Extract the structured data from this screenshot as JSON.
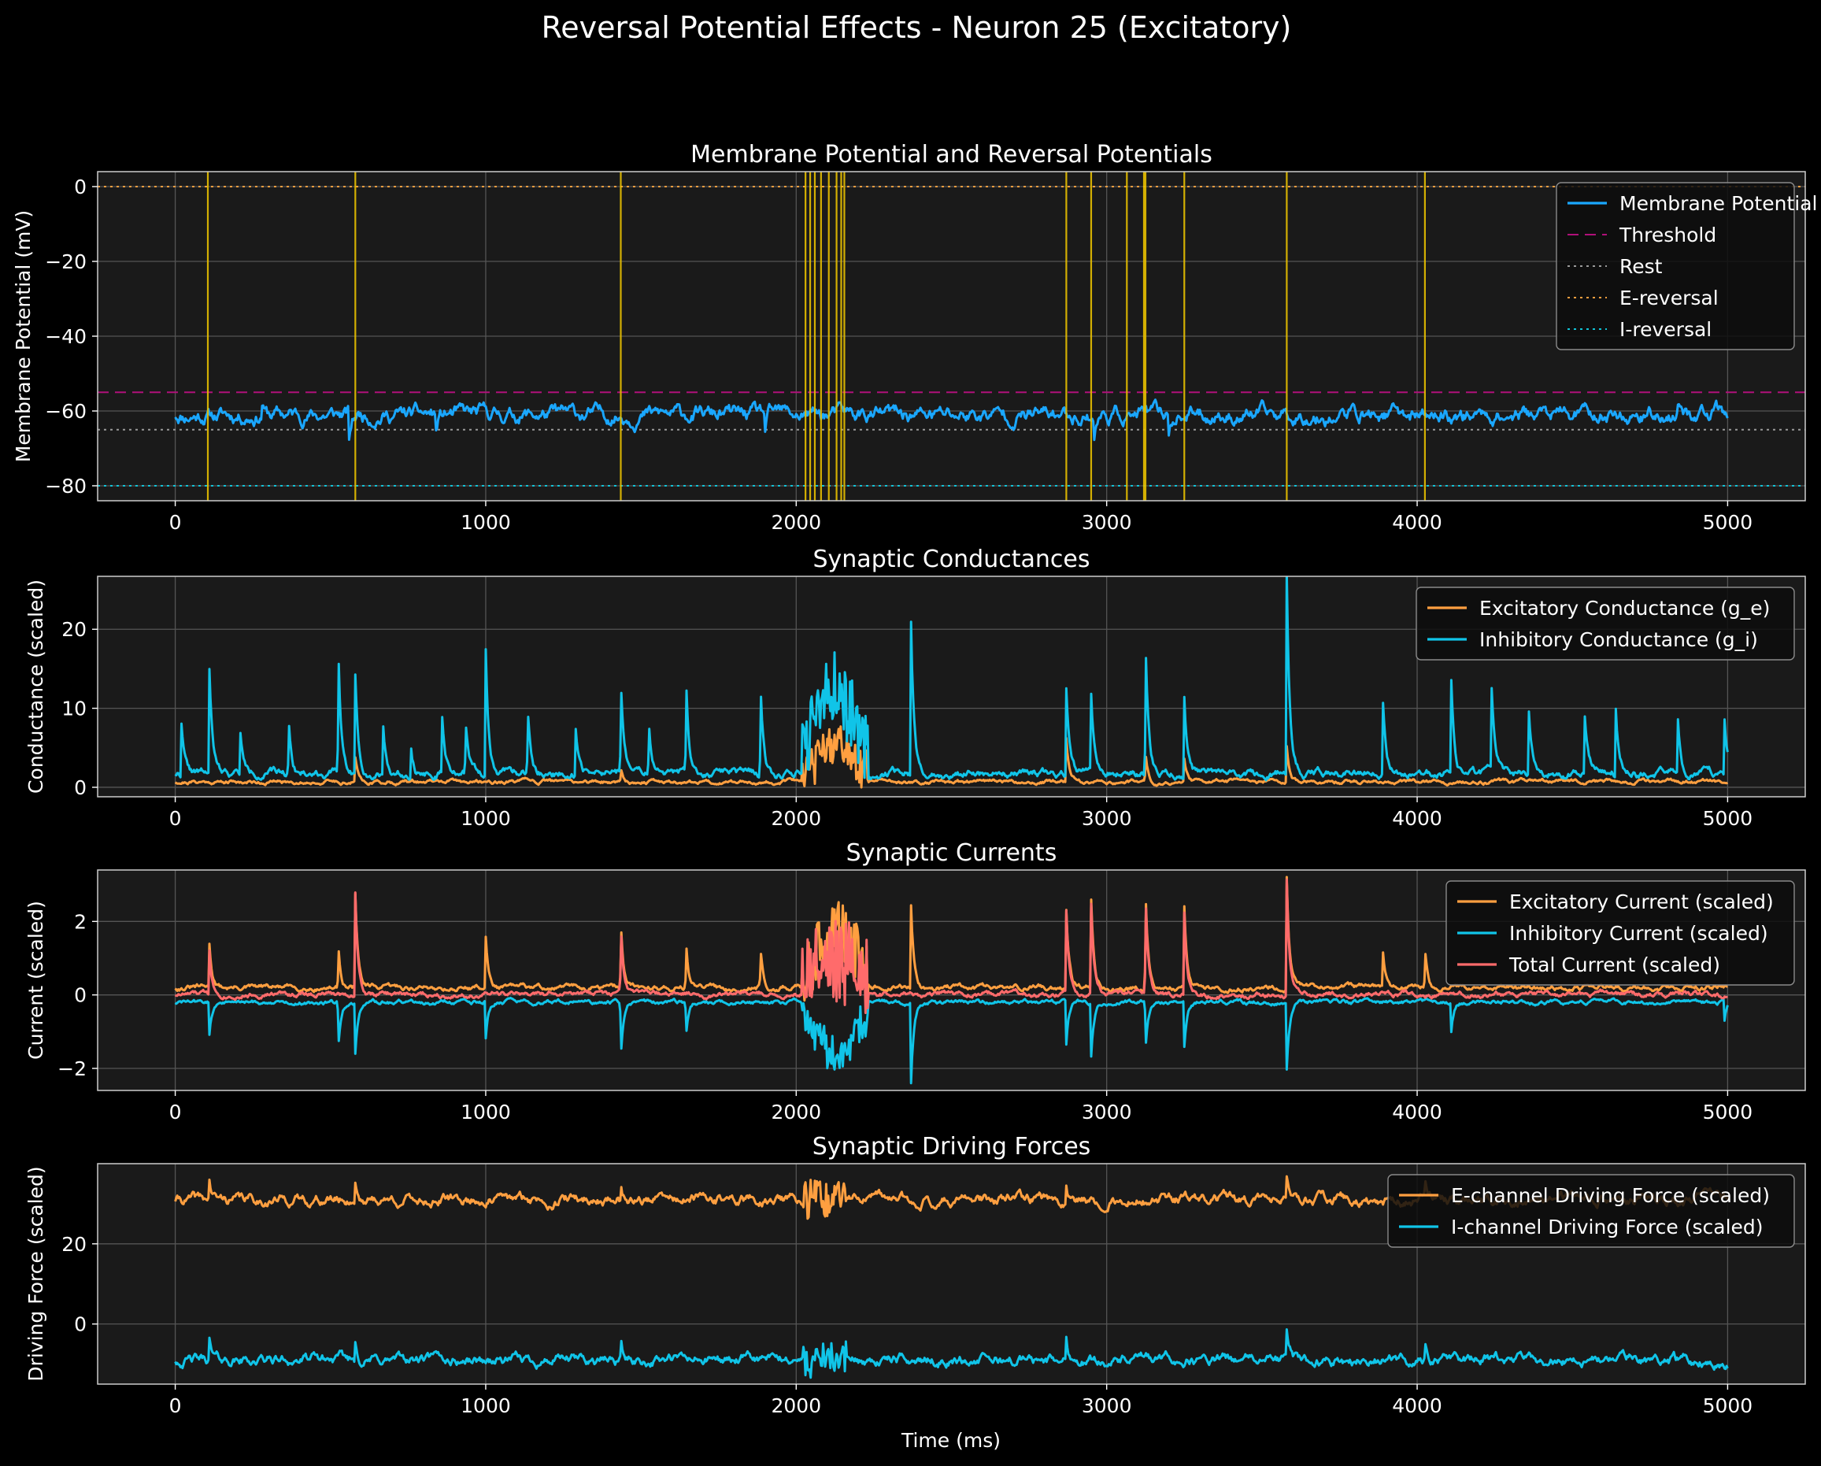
{
  "figure": {
    "title": "Reversal Potential Effects - Neuron 25 (Excitatory)",
    "xlabel": "Time (ms)",
    "colors": {
      "background": "#000000",
      "axes_face": "#1a1a1a",
      "grid": "#555555",
      "text": "#ffffff"
    }
  },
  "chart_data": [
    {
      "type": "line",
      "title": "Membrane Potential and Reversal Potentials",
      "ylabel": "Membrane Potential (mV)",
      "xlim": [
        -250,
        5250
      ],
      "ylim": [
        -84,
        4
      ],
      "xticks": [
        0,
        1000,
        2000,
        3000,
        4000,
        5000
      ],
      "yticks": [
        0,
        -20,
        -40,
        -60,
        -80
      ],
      "legend": "top-right",
      "grid": true,
      "series": [
        {
          "name": "Membrane Potential",
          "color": "#1aa7ff",
          "style": "solid",
          "gen": {
            "base": -61,
            "amp": 2.8,
            "spikes": [
              [
                280,
                4,
                0.5
              ],
              [
                560,
                -8,
                0.6
              ],
              [
                840,
                -5,
                0.5
              ],
              [
                1900,
                -5,
                0.5
              ],
              [
                2960,
                -6,
                0.5
              ],
              [
                3200,
                -5,
                0.5
              ],
              [
                4840,
                3,
                0.6
              ]
            ],
            "burst": null,
            "seed": 11
          }
        }
      ],
      "hlines": [
        {
          "name": "Threshold",
          "y": -55,
          "color": "#b0107a",
          "dash": "14 8"
        },
        {
          "name": "Rest",
          "y": -65,
          "color": "#9a9a9a",
          "dash": "3 5"
        },
        {
          "name": "E-reversal",
          "y": 0,
          "color": "#ff9f40",
          "dash": "3 5"
        },
        {
          "name": "I-reversal",
          "y": -80,
          "color": "#10c4d8",
          "dash": "3 5"
        }
      ],
      "spike_times": [
        105,
        580,
        1435,
        2030,
        2045,
        2060,
        2080,
        2105,
        2130,
        2145,
        2155,
        2870,
        2950,
        3065,
        3120,
        3125,
        3250,
        3580,
        4025
      ],
      "spike_color": "#e8c000"
    },
    {
      "type": "line",
      "title": "Synaptic Conductances",
      "ylabel": "Conductance (scaled)",
      "xlim": [
        -250,
        5250
      ],
      "ylim": [
        -1.2,
        26.7
      ],
      "xticks": [
        0,
        1000,
        2000,
        3000,
        4000,
        5000
      ],
      "yticks": [
        0,
        10,
        20
      ],
      "legend": "top-right",
      "grid": true,
      "series": [
        {
          "name": "Excitatory Conductance (g_e)",
          "color": "#ff9f40",
          "style": "solid",
          "gen": {
            "base": 0.7,
            "amp": 0.35,
            "spikes": [
              [
                580,
                3,
                0.6
              ],
              [
                1435,
                2,
                0.6
              ],
              [
                2870,
                5.5,
                0.6
              ],
              [
                3125,
                3.8,
                0.6
              ],
              [
                3250,
                3,
                0.6
              ],
              [
                3580,
                4.5,
                0.6
              ]
            ],
            "burst": [
              2020,
              2230,
              4.5,
              2.5
            ],
            "seed": 21,
            "floor": 0
          }
        },
        {
          "name": "Inhibitory Conductance (g_i)",
          "color": "#10c4e8",
          "style": "solid",
          "gen": {
            "base": 1.8,
            "amp": 0.7,
            "spikes": [
              [
                20,
                6.5,
                0.7
              ],
              [
                110,
                13,
                0.7
              ],
              [
                210,
                5,
                0.7
              ],
              [
                365,
                7,
                0.7
              ],
              [
                525,
                16.5,
                0.7
              ],
              [
                580,
                12.5,
                0.7
              ],
              [
                670,
                6,
                0.7
              ],
              [
                760,
                4,
                0.7
              ],
              [
                860,
                7,
                0.7
              ],
              [
                935,
                6.5,
                0.7
              ],
              [
                1000,
                16,
                0.7
              ],
              [
                1135,
                8,
                0.7
              ],
              [
                1290,
                6,
                0.7
              ],
              [
                1435,
                12,
                0.7
              ],
              [
                1525,
                7,
                0.7
              ],
              [
                1645,
                12.5,
                0.7
              ],
              [
                1885,
                12,
                0.7
              ],
              [
                2370,
                19.5,
                0.7
              ],
              [
                2870,
                11,
                0.7
              ],
              [
                2950,
                9.5,
                0.7
              ],
              [
                3125,
                17.5,
                0.7
              ],
              [
                3250,
                10,
                0.7
              ],
              [
                3580,
                25.5,
                0.7
              ],
              [
                3890,
                9,
                0.7
              ],
              [
                4110,
                12,
                0.7
              ],
              [
                4240,
                10,
                0.7
              ],
              [
                4360,
                8,
                0.7
              ],
              [
                4540,
                7,
                0.7
              ],
              [
                4640,
                8.5,
                0.7
              ],
              [
                4840,
                7,
                0.7
              ],
              [
                4990,
                7,
                0.7
              ]
            ],
            "burst": [
              2020,
              2230,
              10.5,
              4.5
            ],
            "seed": 22,
            "floor": 0
          }
        }
      ]
    },
    {
      "type": "line",
      "title": "Synaptic Currents",
      "ylabel": "Current (scaled)",
      "xlim": [
        -250,
        5250
      ],
      "ylim": [
        -2.6,
        3.4
      ],
      "xticks": [
        0,
        1000,
        2000,
        3000,
        4000,
        5000
      ],
      "yticks": [
        -2,
        0,
        2
      ],
      "legend": "top-right",
      "grid": true,
      "series": [
        {
          "name": "Excitatory Current (scaled)",
          "color": "#ff9f40",
          "style": "solid",
          "gen": {
            "base": 0.2,
            "amp": 0.1,
            "spikes": [
              [
                110,
                1.2,
                0.6
              ],
              [
                525,
                1.2,
                0.6
              ],
              [
                580,
                2.6,
                0.6
              ],
              [
                1000,
                1.4,
                0.6
              ],
              [
                1435,
                1.8,
                0.6
              ],
              [
                1645,
                1.3,
                0.6
              ],
              [
                1885,
                1.1,
                0.6
              ],
              [
                2370,
                2.3,
                0.6
              ],
              [
                2870,
                2.1,
                0.6
              ],
              [
                2950,
                2.4,
                0.6
              ],
              [
                3125,
                2.8,
                0.6
              ],
              [
                3250,
                2.2,
                0.6
              ],
              [
                3580,
                3.1,
                0.6
              ],
              [
                3890,
                0.9,
                0.6
              ],
              [
                4025,
                1.1,
                0.6
              ]
            ],
            "burst": [
              2020,
              2230,
              1.6,
              0.9
            ],
            "seed": 31
          }
        },
        {
          "name": "Inhibitory Current (scaled)",
          "color": "#10c4e8",
          "style": "solid",
          "gen": {
            "base": -0.2,
            "amp": 0.08,
            "spikes": [
              [
                110,
                -0.9,
                0.6
              ],
              [
                525,
                -1.3,
                0.6
              ],
              [
                580,
                -1.4,
                0.6
              ],
              [
                1000,
                -1.0,
                0.6
              ],
              [
                1435,
                -1.5,
                0.6
              ],
              [
                1645,
                -0.9,
                0.6
              ],
              [
                2370,
                -2.2,
                0.6
              ],
              [
                2870,
                -1.2,
                0.6
              ],
              [
                2950,
                -1.4,
                0.6
              ],
              [
                3125,
                -1.3,
                0.6
              ],
              [
                3250,
                -1.2,
                0.6
              ],
              [
                3580,
                -1.8,
                0.6
              ],
              [
                4110,
                -0.8,
                0.6
              ],
              [
                4990,
                -0.6,
                0.6
              ]
            ],
            "burst": [
              2020,
              2230,
              -1.3,
              0.6
            ],
            "seed": 32
          }
        },
        {
          "name": "Total Current (scaled)",
          "color": "#ff6b6b",
          "style": "solid",
          "gen": {
            "base": 0.02,
            "amp": 0.1,
            "spikes": [
              [
                110,
                1.2,
                0.6
              ],
              [
                580,
                2.8,
                0.6
              ],
              [
                1435,
                1.8,
                0.6
              ],
              [
                2870,
                2.2,
                0.6
              ],
              [
                2950,
                2.4,
                0.6
              ],
              [
                3125,
                2.8,
                0.6
              ],
              [
                3250,
                2.2,
                0.6
              ],
              [
                3580,
                3.2,
                0.6
              ]
            ],
            "burst": [
              2020,
              2230,
              1.0,
              1.2
            ],
            "seed": 33
          }
        }
      ]
    },
    {
      "type": "line",
      "title": "Synaptic Driving Forces",
      "ylabel": "Driving Force (scaled)",
      "xlim": [
        -250,
        5250
      ],
      "ylim": [
        -15,
        40
      ],
      "xticks": [
        0,
        1000,
        2000,
        3000,
        4000,
        5000
      ],
      "yticks": [
        0,
        20
      ],
      "legend": "top-right",
      "grid": true,
      "series": [
        {
          "name": "E-channel Driving Force (scaled)",
          "color": "#ff9f40",
          "style": "solid",
          "gen": {
            "base": 31,
            "amp": 1.8,
            "spikes": [
              [
                110,
                5,
                0.5
              ],
              [
                580,
                5,
                0.5
              ],
              [
                1435,
                5,
                0.5
              ],
              [
                2870,
                5,
                0.5
              ],
              [
                3580,
                6,
                0.5
              ],
              [
                4025,
                5,
                0.5
              ]
            ],
            "burst": [
              2020,
              2160,
              0,
              4.5
            ],
            "seed": 41
          }
        },
        {
          "name": "I-channel Driving Force (scaled)",
          "color": "#10c4e8",
          "style": "solid",
          "gen": {
            "base": -9,
            "amp": 1.8,
            "spikes": [
              [
                110,
                5,
                0.5
              ],
              [
                580,
                5,
                0.5
              ],
              [
                1435,
                5,
                0.5
              ],
              [
                2870,
                5,
                0.5
              ],
              [
                3580,
                6,
                0.5
              ],
              [
                4025,
                5,
                0.5
              ]
            ],
            "burst": [
              2020,
              2160,
              0,
              4.5
            ],
            "seed": 42
          }
        }
      ]
    }
  ]
}
